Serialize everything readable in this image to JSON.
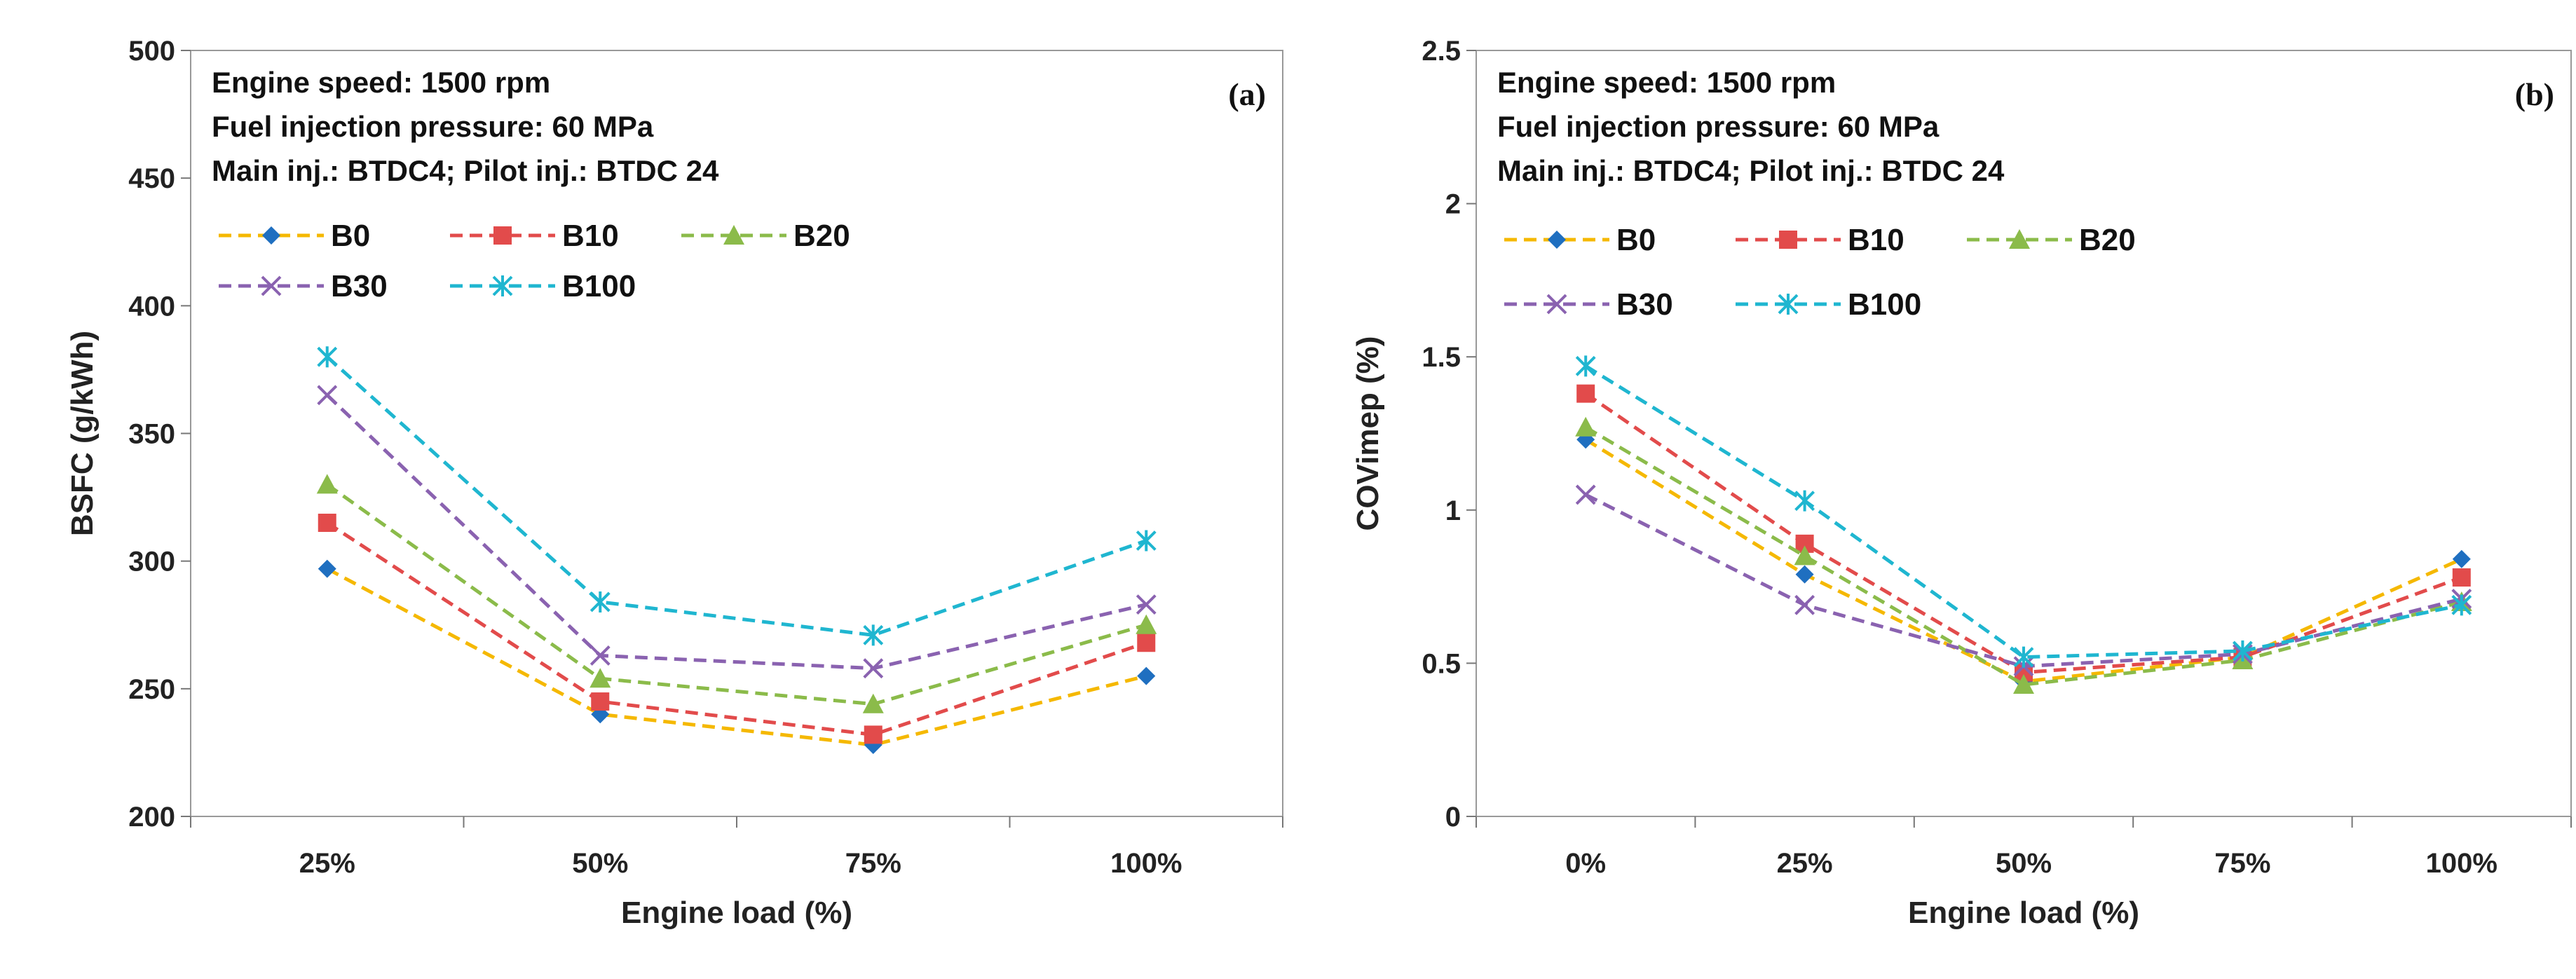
{
  "colors": {
    "B0": "#f5b800",
    "B10": "#e24b4b",
    "B20": "#8bbb4a",
    "B30": "#8a62b0",
    "B100": "#1fb6d0",
    "B0_marker": "#1f6fc0"
  },
  "chart_data": [
    {
      "type": "line",
      "panel_label": "(a)",
      "xlabel": "Engine load (%)",
      "ylabel": "BSFC (g/kWh)",
      "categories": [
        "25%",
        "50%",
        "75%",
        "100%"
      ],
      "ylim": [
        200,
        500
      ],
      "yticks": [
        "200",
        "250",
        "300",
        "350",
        "400",
        "450",
        "500"
      ],
      "ytick_values": [
        200,
        250,
        300,
        350,
        400,
        450,
        500
      ],
      "annotations": [
        "Engine speed: 1500 rpm",
        "Fuel injection pressure: 60 MPa",
        "Main inj.: BTDC4; Pilot inj.: BTDC 24"
      ],
      "series": [
        {
          "name": "B0",
          "marker": "diamond",
          "values": [
            297,
            240,
            228,
            255
          ]
        },
        {
          "name": "B10",
          "marker": "square",
          "values": [
            315,
            245,
            232,
            268
          ]
        },
        {
          "name": "B20",
          "marker": "triangle",
          "values": [
            330,
            254,
            244,
            275
          ]
        },
        {
          "name": "B30",
          "marker": "x",
          "values": [
            365,
            263,
            258,
            283
          ]
        },
        {
          "name": "B100",
          "marker": "star",
          "values": [
            380,
            284,
            271,
            308
          ]
        }
      ]
    },
    {
      "type": "line",
      "panel_label": "(b)",
      "xlabel": "Engine load (%)",
      "ylabel": "COVimep (%)",
      "categories": [
        "0%",
        "25%",
        "50%",
        "75%",
        "100%"
      ],
      "ylim": [
        0,
        2.5
      ],
      "yticks": [
        "0",
        "0.5",
        "1",
        "1.5",
        "2",
        "2.5"
      ],
      "ytick_values": [
        0,
        0.5,
        1,
        1.5,
        2,
        2.5
      ],
      "annotations": [
        "Engine speed: 1500 rpm",
        "Fuel injection pressure: 60 MPa",
        "Main inj.: BTDC4; Pilot inj.: BTDC 24"
      ],
      "series": [
        {
          "name": "B0",
          "marker": "diamond",
          "values": [
            1.23,
            0.79,
            0.44,
            0.52,
            0.84
          ]
        },
        {
          "name": "B10",
          "marker": "square",
          "values": [
            1.38,
            0.89,
            0.47,
            0.52,
            0.78
          ]
        },
        {
          "name": "B20",
          "marker": "triangle",
          "values": [
            1.27,
            0.85,
            0.43,
            0.51,
            0.7
          ]
        },
        {
          "name": "B30",
          "marker": "x",
          "values": [
            1.05,
            0.69,
            0.49,
            0.53,
            0.71
          ]
        },
        {
          "name": "B100",
          "marker": "star",
          "values": [
            1.47,
            1.03,
            0.52,
            0.54,
            0.69
          ]
        }
      ]
    }
  ]
}
